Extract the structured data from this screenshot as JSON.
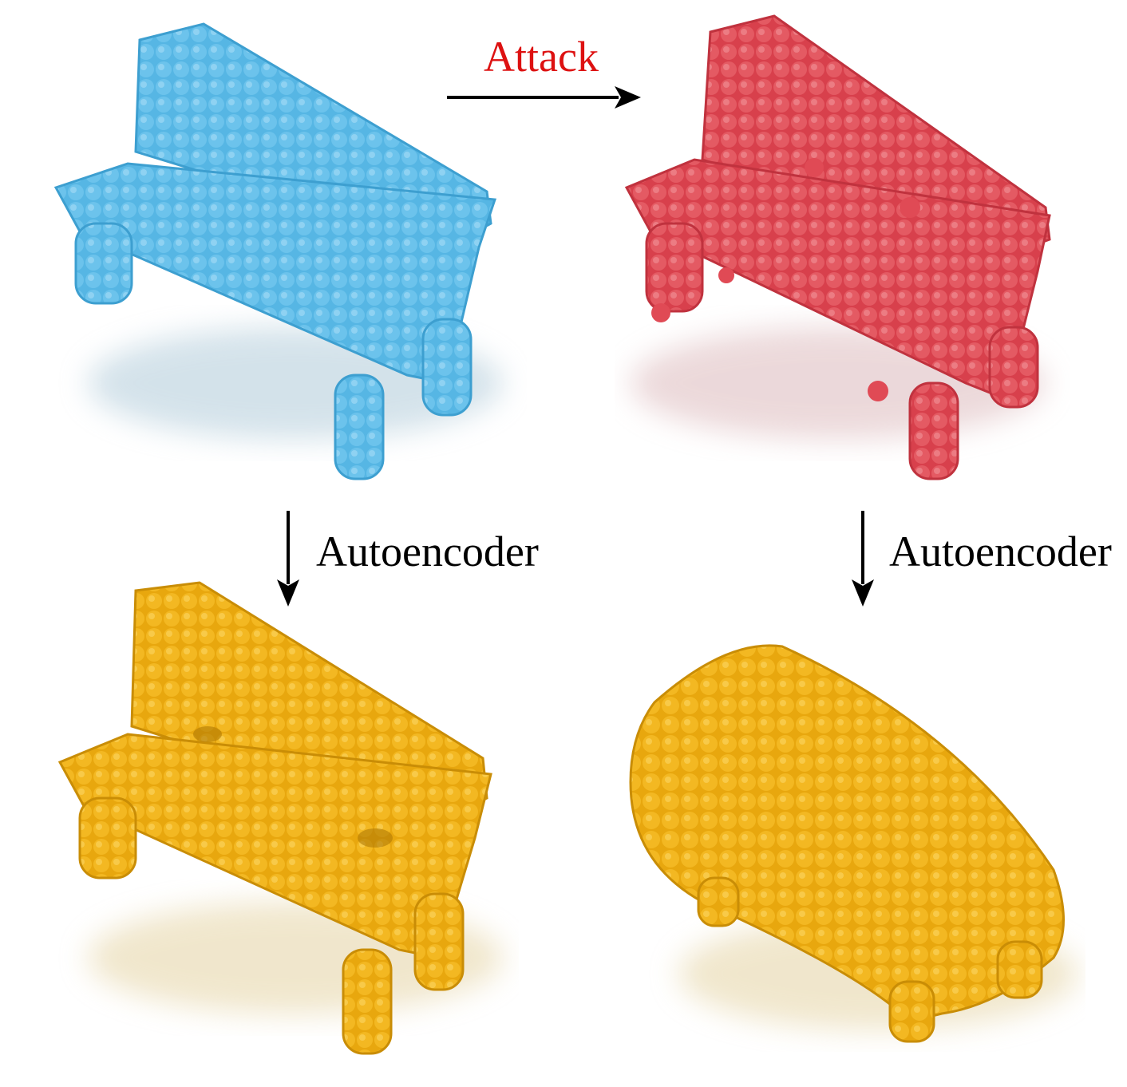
{
  "labels": {
    "attack": "Attack",
    "autoencoder_left": "Autoencoder",
    "autoencoder_right": "Autoencoder"
  },
  "colors": {
    "original": "#5bb8e6",
    "adversarial": "#e04a55",
    "reconstruction": "#f0b414",
    "attack_text": "#dd1111",
    "text": "#000000",
    "arrow": "#000000"
  },
  "panels": {
    "original": {
      "description_icon": "bench-point-cloud-blue"
    },
    "adversarial": {
      "description_icon": "bench-point-cloud-red"
    },
    "reconstructed_original": {
      "description_icon": "bench-point-cloud-yellow"
    },
    "reconstructed_adversarial": {
      "description_icon": "blob-point-cloud-yellow"
    }
  }
}
